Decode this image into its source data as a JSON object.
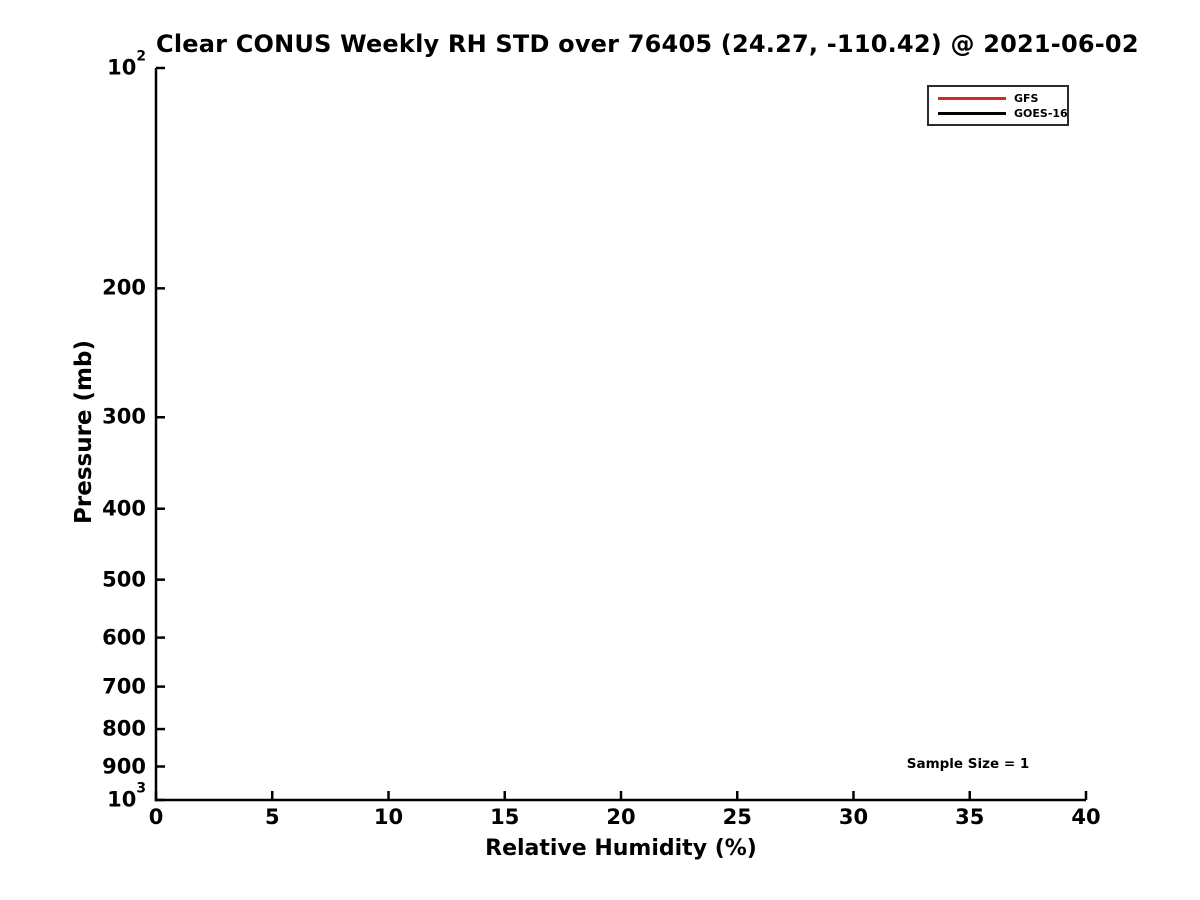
{
  "chart_data": {
    "type": "line",
    "title": "Clear CONUS Weekly RH STD over 76405 (24.27, -110.42) @ 2021-06-02",
    "xlabel": "Relative Humidity (%)",
    "ylabel": "Pressure (mb)",
    "x_axis": {
      "min": 0,
      "max": 40,
      "ticks": [
        0,
        5,
        10,
        15,
        20,
        25,
        30,
        35,
        40
      ]
    },
    "y_axis": {
      "scale": "log",
      "min": 100,
      "max": 1000,
      "orientation": "pressure increases downward (100 mb at top, 1000 mb at bottom)",
      "ticks": [
        {
          "value": 100,
          "base": "10",
          "sup": "2"
        },
        {
          "value": 200,
          "label": "200"
        },
        {
          "value": 300,
          "label": "300"
        },
        {
          "value": 400,
          "label": "400"
        },
        {
          "value": 500,
          "label": "500"
        },
        {
          "value": 600,
          "label": "600"
        },
        {
          "value": 700,
          "label": "700"
        },
        {
          "value": 800,
          "label": "800"
        },
        {
          "value": 900,
          "label": "900"
        },
        {
          "value": 1000,
          "base": "10",
          "sup": "3"
        }
      ]
    },
    "grid": false,
    "legend": {
      "position": "upper right",
      "entries": [
        {
          "label": "GFS",
          "color": "#d62728"
        },
        {
          "label": "GOES-16",
          "color": "#000000"
        }
      ]
    },
    "series": [
      {
        "name": "GFS",
        "color": "#d62728",
        "points": []
      },
      {
        "name": "GOES-16",
        "color": "#000000",
        "points": []
      }
    ],
    "annotations": [
      {
        "text": "Sample Size = 1",
        "position": "lower right"
      }
    ]
  },
  "colors": {
    "axis": "#000000",
    "text": "#000000",
    "background": "#ffffff"
  }
}
